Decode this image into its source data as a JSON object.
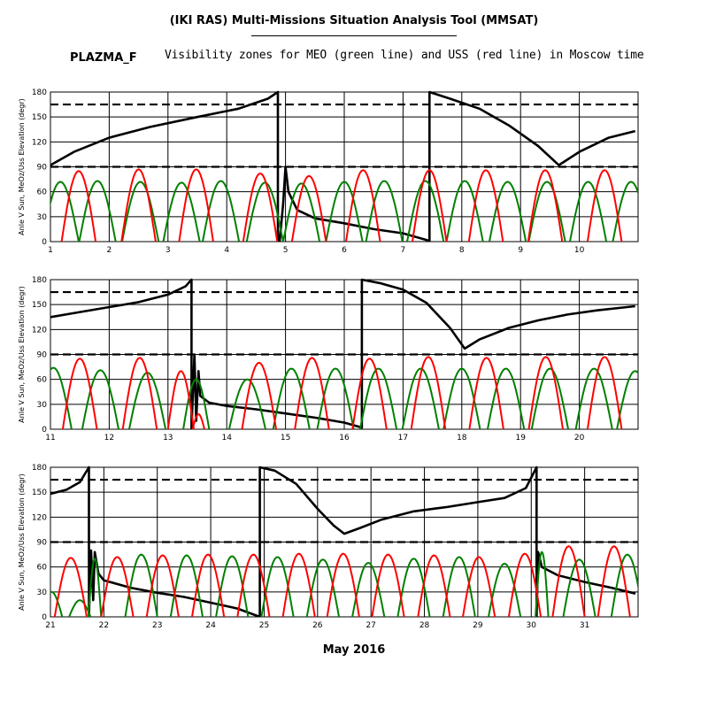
{
  "header": {
    "title": "(IKI RAS) Multi-Missions Situation Analysis Tool (MMSAT)",
    "mission": "PLAZMA_F",
    "subtitle": "Visibility zones for MEO (green line) and USS (red line) in Moscow time",
    "month_label": "May 2016"
  },
  "colors": {
    "sun_angle": "#000000",
    "meo": "#008000",
    "uss": "#ff0000",
    "grid": "#000000"
  },
  "chart_data": [
    {
      "type": "line",
      "ylabel": "Anle V Sun, MeOz/Uss Elevation (degr)",
      "ylim": [
        0,
        180
      ],
      "yticks": [
        0,
        30,
        60,
        90,
        120,
        150,
        180
      ],
      "xlim": [
        1,
        11
      ],
      "xticks": [
        1,
        2,
        3,
        4,
        5,
        6,
        7,
        8,
        9,
        10
      ],
      "reference_lines": [
        90,
        165
      ],
      "series": [
        {
          "id": "sun_angle",
          "color": "#000000",
          "points": [
            [
              1,
              92
            ],
            [
              1.4,
              108
            ],
            [
              2,
              125
            ],
            [
              2.7,
              138
            ],
            [
              3.5,
              150
            ],
            [
              4.2,
              160
            ],
            [
              4.7,
              172
            ],
            [
              4.87,
              180
            ],
            [
              4.87,
              0
            ],
            [
              4.9,
              0
            ],
            [
              4.96,
              45
            ],
            [
              5.0,
              90
            ],
            [
              5.05,
              60
            ],
            [
              5.2,
              38
            ],
            [
              5.5,
              28
            ],
            [
              6,
              22
            ],
            [
              6.5,
              15
            ],
            [
              7,
              10
            ],
            [
              7.45,
              1
            ],
            [
              7.45,
              180
            ],
            [
              7.8,
              172
            ],
            [
              8.3,
              160
            ],
            [
              8.8,
              140
            ],
            [
              9.3,
              115
            ],
            [
              9.65,
              92
            ],
            [
              10,
              108
            ],
            [
              10.5,
              125
            ],
            [
              10.95,
              133
            ]
          ]
        },
        {
          "id": "meo",
          "color": "#008000",
          "peaks": [
            [
              1.17,
              0.31,
              72
            ],
            [
              1.8,
              0.31,
              73
            ],
            [
              2.53,
              0.31,
              72
            ],
            [
              3.23,
              0.31,
              71
            ],
            [
              3.9,
              0.31,
              73
            ],
            [
              4.65,
              0.31,
              71
            ],
            [
              5.27,
              0.31,
              70
            ],
            [
              6.0,
              0.31,
              72
            ],
            [
              6.68,
              0.31,
              73
            ],
            [
              7.38,
              0.31,
              73
            ],
            [
              8.05,
              0.31,
              73
            ],
            [
              8.78,
              0.31,
              72
            ],
            [
              9.45,
              0.31,
              72
            ],
            [
              10.15,
              0.31,
              72
            ],
            [
              10.88,
              0.31,
              72
            ]
          ]
        },
        {
          "id": "uss",
          "color": "#ff0000",
          "peaks": [
            [
              1.48,
              0.29,
              85
            ],
            [
              2.5,
              0.29,
              87
            ],
            [
              3.48,
              0.29,
              87
            ],
            [
              4.57,
              0.29,
              82
            ],
            [
              5.4,
              0.29,
              79
            ],
            [
              6.32,
              0.29,
              86
            ],
            [
              7.45,
              0.29,
              86
            ],
            [
              8.41,
              0.29,
              86
            ],
            [
              9.42,
              0.29,
              86
            ],
            [
              10.43,
              0.29,
              86
            ]
          ]
        }
      ]
    },
    {
      "type": "line",
      "ylabel": "Anle V Sun, MeOz/Uss Elevation (degr)",
      "ylim": [
        0,
        180
      ],
      "yticks": [
        0,
        30,
        60,
        90,
        120,
        150,
        180
      ],
      "xlim": [
        11,
        21
      ],
      "xticks": [
        11,
        12,
        13,
        14,
        15,
        16,
        17,
        18,
        19,
        20
      ],
      "reference_lines": [
        90,
        165
      ],
      "series": [
        {
          "id": "sun_angle",
          "color": "#000000",
          "points": [
            [
              11,
              135
            ],
            [
              11.5,
              141
            ],
            [
              12,
              147
            ],
            [
              12.5,
              153
            ],
            [
              13,
              162
            ],
            [
              13.3,
              172
            ],
            [
              13.4,
              180
            ],
            [
              13.4,
              0
            ],
            [
              13.45,
              90
            ],
            [
              13.48,
              10
            ],
            [
              13.52,
              70
            ],
            [
              13.55,
              40
            ],
            [
              13.7,
              32
            ],
            [
              14,
              28
            ],
            [
              14.5,
              24
            ],
            [
              15,
              19
            ],
            [
              15.5,
              14
            ],
            [
              16,
              8
            ],
            [
              16.3,
              2
            ],
            [
              16.3,
              180
            ],
            [
              16.6,
              176
            ],
            [
              17,
              168
            ],
            [
              17.4,
              152
            ],
            [
              17.8,
              122
            ],
            [
              18.05,
              97
            ],
            [
              18.3,
              108
            ],
            [
              18.8,
              122
            ],
            [
              19.3,
              131
            ],
            [
              19.8,
              138
            ],
            [
              20.3,
              143
            ],
            [
              20.95,
              148
            ]
          ]
        },
        {
          "id": "meo",
          "color": "#008000",
          "peaks": [
            [
              11.05,
              0.31,
              74
            ],
            [
              11.85,
              0.31,
              71
            ],
            [
              12.65,
              0.31,
              68
            ],
            [
              13.48,
              0.22,
              60
            ],
            [
              14.35,
              0.31,
              60
            ],
            [
              15.1,
              0.31,
              73
            ],
            [
              15.85,
              0.31,
              73
            ],
            [
              16.58,
              0.31,
              73
            ],
            [
              17.3,
              0.31,
              73
            ],
            [
              18.0,
              0.31,
              73
            ],
            [
              18.75,
              0.31,
              73
            ],
            [
              19.5,
              0.31,
              73
            ],
            [
              20.25,
              0.31,
              73
            ],
            [
              20.95,
              0.31,
              70
            ]
          ]
        },
        {
          "id": "uss",
          "color": "#ff0000",
          "peaks": [
            [
              11.5,
              0.29,
              85
            ],
            [
              12.52,
              0.29,
              86
            ],
            [
              13.22,
              0.22,
              70
            ],
            [
              13.52,
              0.1,
              18
            ],
            [
              14.55,
              0.29,
              80
            ],
            [
              15.45,
              0.29,
              86
            ],
            [
              16.43,
              0.29,
              85
            ],
            [
              17.43,
              0.29,
              87
            ],
            [
              18.42,
              0.29,
              86
            ],
            [
              19.43,
              0.29,
              87
            ],
            [
              20.43,
              0.29,
              87
            ]
          ]
        }
      ]
    },
    {
      "type": "line",
      "ylabel": "Anle V Sun, MeOz/Uss Elevation (degr)",
      "ylim": [
        0,
        180
      ],
      "yticks": [
        0,
        30,
        60,
        90,
        120,
        150,
        180
      ],
      "xlim": [
        21,
        32
      ],
      "xticks": [
        21,
        22,
        23,
        24,
        25,
        26,
        27,
        28,
        29,
        30,
        31
      ],
      "reference_lines": [
        90,
        165
      ],
      "series": [
        {
          "id": "sun_angle",
          "color": "#000000",
          "points": [
            [
              21,
              148
            ],
            [
              21.3,
              153
            ],
            [
              21.55,
              162
            ],
            [
              21.72,
              180
            ],
            [
              21.72,
              0
            ],
            [
              21.76,
              80
            ],
            [
              21.8,
              20
            ],
            [
              21.83,
              78
            ],
            [
              21.9,
              52
            ],
            [
              22,
              44
            ],
            [
              22.5,
              35
            ],
            [
              23,
              29
            ],
            [
              23.5,
              24
            ],
            [
              24,
              17
            ],
            [
              24.5,
              10
            ],
            [
              24.92,
              0
            ],
            [
              24.92,
              180
            ],
            [
              25.2,
              176
            ],
            [
              25.6,
              160
            ],
            [
              26,
              130
            ],
            [
              26.3,
              110
            ],
            [
              26.5,
              100
            ],
            [
              26.8,
              107
            ],
            [
              27.2,
              117
            ],
            [
              27.8,
              127
            ],
            [
              28.4,
              132
            ],
            [
              29,
              138
            ],
            [
              29.5,
              143
            ],
            [
              29.9,
              155
            ],
            [
              30.1,
              180
            ],
            [
              30.1,
              0
            ],
            [
              30.13,
              78
            ],
            [
              30.2,
              60
            ],
            [
              30.5,
              50
            ],
            [
              31,
              42
            ],
            [
              31.5,
              35
            ],
            [
              31.95,
              28
            ]
          ]
        },
        {
          "id": "meo",
          "color": "#008000",
          "peaks": [
            [
              21.02,
              0.2,
              30
            ],
            [
              21.55,
              0.2,
              20
            ],
            [
              21.83,
              0.12,
              70
            ],
            [
              22.7,
              0.3,
              75
            ],
            [
              23.55,
              0.3,
              74
            ],
            [
              24.4,
              0.3,
              73
            ],
            [
              25.25,
              0.3,
              72
            ],
            [
              26.1,
              0.3,
              69
            ],
            [
              26.95,
              0.3,
              65
            ],
            [
              27.8,
              0.3,
              70
            ],
            [
              28.65,
              0.3,
              72
            ],
            [
              29.5,
              0.3,
              64
            ],
            [
              30.2,
              0.12,
              78
            ],
            [
              30.9,
              0.3,
              69
            ],
            [
              31.8,
              0.3,
              75
            ]
          ]
        },
        {
          "id": "uss",
          "color": "#ff0000",
          "peaks": [
            [
              21.38,
              0.3,
              71
            ],
            [
              22.25,
              0.3,
              72
            ],
            [
              23.1,
              0.3,
              74
            ],
            [
              23.95,
              0.3,
              75
            ],
            [
              24.8,
              0.3,
              75
            ],
            [
              25.65,
              0.3,
              76
            ],
            [
              26.48,
              0.3,
              76
            ],
            [
              27.32,
              0.3,
              75
            ],
            [
              28.18,
              0.3,
              74
            ],
            [
              29.02,
              0.3,
              72
            ],
            [
              29.88,
              0.3,
              76
            ],
            [
              30.7,
              0.3,
              85
            ],
            [
              31.55,
              0.3,
              85
            ]
          ]
        }
      ]
    }
  ]
}
